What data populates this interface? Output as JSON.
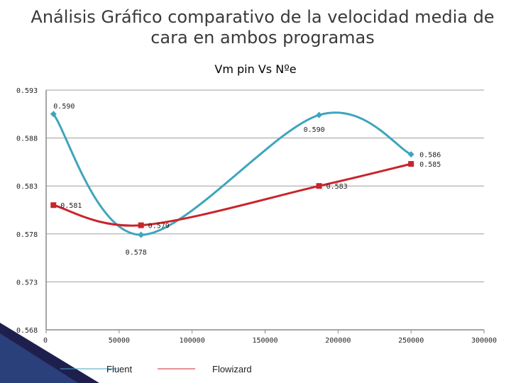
{
  "page": {
    "title": "Análisis Gráfico comparativo de la velocidad media de\ncara en ambos programas"
  },
  "colors": {
    "fluent": "#3ea5bd",
    "flowizard": "#c8252c",
    "axis": "#888888",
    "grid": "#9e9e9e"
  },
  "chart_data": {
    "type": "scatter",
    "title": "Vm pin Vs Nºe",
    "xlabel": "",
    "ylabel": "",
    "xlim": [
      0,
      300000
    ],
    "ylim": [
      0.568,
      0.593
    ],
    "x_ticks": [
      "0",
      "50000",
      "100000",
      "150000",
      "200000",
      "250000",
      "300000"
    ],
    "y_ticks": [
      "0.593",
      "0.588",
      "0.583",
      "0.578",
      "0.573",
      "0.568"
    ],
    "grid": true,
    "legend_position": "bottom",
    "series": [
      {
        "name": "Fluent",
        "marker": "diamond",
        "smooth": true,
        "x": [
          5000,
          65000,
          187000,
          250000
        ],
        "y": [
          0.5905,
          0.5779,
          0.5904,
          0.5863
        ],
        "labels": [
          "0.590",
          "0.578",
          "0.590",
          "0.586"
        ]
      },
      {
        "name": "Flowizard",
        "marker": "square",
        "smooth": true,
        "x": [
          5000,
          65000,
          187000,
          250000
        ],
        "y": [
          0.581,
          0.5789,
          0.583,
          0.5853
        ],
        "labels": [
          "0.581",
          "0.579",
          "0.583",
          "0.585"
        ]
      }
    ]
  }
}
